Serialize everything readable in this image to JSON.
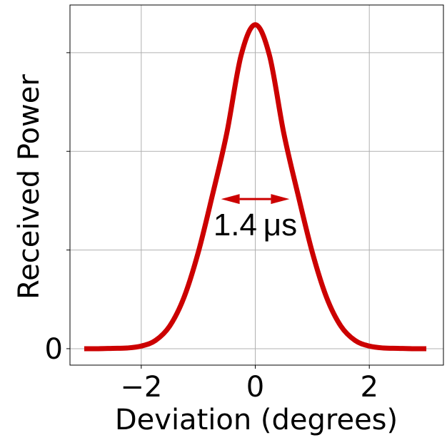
{
  "chart_data": {
    "type": "line",
    "title": "",
    "xlabel": "Deviation (degrees)",
    "ylabel": "Received Power",
    "xlim": [
      -3.25,
      3.3
    ],
    "ylim": [
      -0.05,
      1.045
    ],
    "x_ticks": [
      {
        "value": -2,
        "label": "−2"
      },
      {
        "value": 0,
        "label": "0"
      },
      {
        "value": 2,
        "label": "2"
      }
    ],
    "y_ticks": [
      {
        "value": 0,
        "label": "0"
      },
      {
        "value": 0.3,
        "label": ""
      },
      {
        "value": 0.6,
        "label": ""
      },
      {
        "value": 0.9,
        "label": ""
      }
    ],
    "grid": true,
    "series": [
      {
        "color": "#cc0000",
        "x": [
          -3.0,
          -2.75,
          -2.5,
          -2.25,
          -2.0,
          -1.75,
          -1.5,
          -1.25,
          -1.0,
          -0.75,
          -0.5,
          -0.25,
          0.0,
          0.25,
          0.5,
          0.75,
          1.0,
          1.25,
          1.5,
          1.75,
          2.0,
          2.25,
          2.5,
          2.75,
          3.0
        ],
        "y": [
          0.0,
          0.0,
          0.001,
          0.002,
          0.008,
          0.025,
          0.069,
          0.156,
          0.293,
          0.468,
          0.655,
          0.891,
          0.985,
          0.891,
          0.655,
          0.468,
          0.293,
          0.156,
          0.069,
          0.025,
          0.008,
          0.002,
          0.001,
          0.0,
          0.0
        ]
      }
    ],
    "annotations": [
      {
        "text": "1.4 μs",
        "type": "double-arrow",
        "x_from": -0.6,
        "x_to": 0.6,
        "y": 0.455,
        "text_x": 0.0,
        "text_y": 0.345,
        "color": "#cc0000"
      }
    ]
  }
}
